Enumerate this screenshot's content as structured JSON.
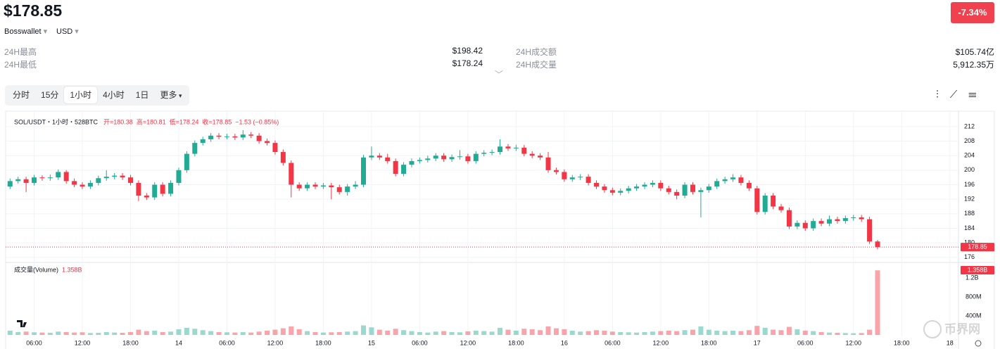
{
  "header": {
    "price": "$178.85",
    "source": "Bosswallet",
    "currency": "USD",
    "change": "-7.34%"
  },
  "stats": [
    {
      "label": "24H最高",
      "value": "$198.42"
    },
    {
      "label": "24H最低",
      "value": "$178.24"
    },
    {
      "label": "24H成交额",
      "value": "$105.74亿"
    },
    {
      "label": "24H成交量",
      "value": "5,912.35万"
    }
  ],
  "tabs": [
    "分时",
    "15分",
    "1小时",
    "4小时",
    "1日",
    "更多"
  ],
  "selected_tab": 2,
  "watermark": "币界网",
  "chart_data": {
    "type": "candlestick",
    "title": "SOL/USDT・1小时・528BTC",
    "legend": [
      "开=180.38",
      "高=180.81",
      "低=178.24",
      "收=178.85",
      "−1.53 (−0.85%)"
    ],
    "up_color": "#22ab94",
    "down_color": "#f23645",
    "grid": true,
    "open": [
      195.5,
      197,
      197.5,
      196.5,
      198,
      197.8,
      198,
      199.5,
      197,
      196,
      195.5,
      196.5,
      197.8,
      198.2,
      198.5,
      198,
      196.5,
      193,
      192.5,
      196,
      193.5,
      196.5,
      200,
      204.5,
      207.5,
      208.5,
      209.5,
      209.2,
      209.3,
      209,
      209.8,
      209.5,
      208,
      207.5,
      205,
      202,
      196,
      195,
      196,
      195.5,
      195.8,
      195.3,
      194,
      195.5,
      196,
      203.5,
      204,
      203.5,
      202.5,
      199,
      201.5,
      202.5,
      202.8,
      203.2,
      204,
      203,
      203.6,
      203.8,
      202.5,
      204.5,
      204.8,
      205,
      206.5,
      206,
      206.2,
      204.5,
      204,
      203.5,
      200,
      199.5,
      197.5,
      198,
      198.2,
      196.5,
      195.5,
      194.5,
      193.8,
      194.3,
      195,
      195.5,
      196,
      196.5,
      195,
      194,
      193,
      196,
      194,
      194.5,
      195.5,
      197,
      197.5,
      198,
      196.5,
      195,
      188.5,
      193,
      190,
      189,
      184.5,
      185.5,
      184,
      186,
      185.3,
      186.5,
      186,
      186.8,
      187,
      186.5,
      180.38
    ],
    "high": [
      197.7,
      198.2,
      198.2,
      198.7,
      198.6,
      198.8,
      200.2,
      200,
      197.7,
      196.7,
      197.2,
      198.5,
      200,
      199.2,
      199.2,
      198.7,
      197.2,
      193.7,
      196.7,
      196.7,
      197.2,
      200.7,
      205.2,
      208.2,
      209.2,
      210.2,
      210.2,
      210,
      210,
      211,
      210.5,
      210.2,
      208.7,
      208.2,
      205.7,
      202.7,
      196.7,
      196.7,
      196.7,
      196.5,
      196.5,
      196,
      196.2,
      197,
      204.2,
      206.5,
      204.7,
      204.5,
      203.2,
      202.2,
      203.2,
      203.5,
      204,
      204.7,
      204.7,
      204.3,
      205.5,
      204.5,
      205.2,
      205.5,
      205.7,
      208.5,
      207.2,
      207,
      206.9,
      205.2,
      204.7,
      205,
      200.7,
      200.2,
      198.7,
      198.9,
      198.9,
      197.2,
      196.2,
      195.2,
      195,
      195.7,
      196.2,
      196.7,
      197.2,
      197.2,
      195.7,
      194.7,
      196.7,
      196.7,
      195.2,
      196.2,
      197.7,
      198.2,
      198.9,
      198.7,
      197.2,
      195.7,
      193.7,
      193.7,
      190.7,
      189.7,
      186.2,
      186.2,
      186.7,
      186.7,
      187.5,
      187.2,
      187.5,
      187.7,
      187.7,
      187.2,
      180.81
    ],
    "low": [
      194.8,
      196.3,
      194,
      195.8,
      197.1,
      197.1,
      197.3,
      196.3,
      195.3,
      194.8,
      194.8,
      195.8,
      197.1,
      197.5,
      197.3,
      195.8,
      191.5,
      191.8,
      191.8,
      192.8,
      192.8,
      195.8,
      199.3,
      203.8,
      206.8,
      207.8,
      208.5,
      208.5,
      208.3,
      208.3,
      208.8,
      207.3,
      206.8,
      204.3,
      201.3,
      192.5,
      194.3,
      194.3,
      194.8,
      194.8,
      192,
      193.3,
      193,
      194.8,
      195.3,
      202.8,
      202.8,
      201.8,
      198.3,
      198.3,
      200.8,
      201.8,
      202.1,
      202.5,
      202.3,
      202.3,
      202.9,
      201.8,
      201.8,
      203.8,
      204.1,
      204.3,
      205.3,
      205.3,
      203.8,
      203.3,
      202.8,
      199.3,
      198.8,
      196.8,
      196.8,
      197.3,
      195.8,
      194.8,
      193.8,
      193.1,
      193.1,
      193.6,
      194.3,
      194.8,
      195.3,
      194.3,
      193.3,
      192,
      192.3,
      193.3,
      187,
      193.8,
      194.8,
      196.3,
      196.8,
      195.8,
      194.3,
      187.8,
      187.8,
      189.3,
      188.3,
      183.8,
      183.8,
      183.3,
      183.3,
      184.6,
      184.6,
      185.3,
      185.3,
      186.1,
      185.8,
      179.7,
      178.24
    ],
    "close": [
      197,
      197.5,
      196.5,
      198,
      197.8,
      198,
      199.5,
      197,
      196,
      195.5,
      196.5,
      197.8,
      198.2,
      198.5,
      198,
      196.5,
      193,
      192.5,
      196,
      193.5,
      196.5,
      200,
      204.5,
      207.5,
      208.5,
      209.5,
      209.2,
      209.3,
      209,
      209.8,
      209.5,
      208,
      207.5,
      205,
      202,
      196,
      195,
      196,
      195.5,
      195.8,
      195.3,
      194,
      195.5,
      196,
      203.5,
      204,
      203.5,
      202.5,
      199,
      201.5,
      202.5,
      202.8,
      203.2,
      204,
      203,
      203.6,
      203.8,
      202.5,
      204.5,
      204.8,
      205,
      206.5,
      206,
      206.2,
      204.5,
      204,
      203.5,
      200,
      199.5,
      197.5,
      198,
      198.2,
      196.5,
      195.5,
      194.5,
      193.8,
      194.3,
      195,
      195.5,
      196,
      196.5,
      195,
      194,
      193,
      196,
      194,
      194.5,
      195.5,
      197,
      197.5,
      198,
      196.5,
      195,
      188.5,
      193,
      190,
      189,
      184.5,
      185.5,
      184,
      186,
      185.3,
      186.5,
      186,
      186.8,
      187,
      186.5,
      180.38,
      178.85
    ],
    "ylim": [
      174.8,
      214.3
    ],
    "yticks": [
      176,
      180,
      184,
      188,
      192,
      196,
      200,
      204,
      208,
      212
    ],
    "xlim": [
      -0.2,
      117.9
    ],
    "xticks": [
      {
        "value": 3,
        "label": "06:00"
      },
      {
        "value": 9,
        "label": "12:00"
      },
      {
        "value": 15,
        "label": "18:00"
      },
      {
        "value": 21,
        "label": "14"
      },
      {
        "value": 27,
        "label": "06:00"
      },
      {
        "value": 33,
        "label": "12:00"
      },
      {
        "value": 39,
        "label": "18:00"
      },
      {
        "value": 45,
        "label": "15"
      },
      {
        "value": 51,
        "label": "06:00"
      },
      {
        "value": 57,
        "label": "12:00"
      },
      {
        "value": 63,
        "label": "18:00"
      },
      {
        "value": 69,
        "label": "16"
      },
      {
        "value": 75,
        "label": "06:00"
      },
      {
        "value": 81,
        "label": "12:00"
      },
      {
        "value": 87,
        "label": "18:00"
      },
      {
        "value": 93,
        "label": "17"
      },
      {
        "value": 99,
        "label": "06:00"
      },
      {
        "value": 105,
        "label": "12:00"
      },
      {
        "value": 111,
        "label": "18:00"
      },
      {
        "value": 117,
        "label": "18"
      }
    ],
    "volume": {
      "name": "成交量(Volume)",
      "last_value_label": "1.358B",
      "values": [
        90,
        60,
        70,
        55,
        50,
        45,
        70,
        60,
        50,
        55,
        40,
        45,
        60,
        50,
        45,
        60,
        110,
        80,
        90,
        60,
        70,
        120,
        150,
        130,
        100,
        80,
        60,
        55,
        50,
        60,
        50,
        70,
        90,
        110,
        140,
        180,
        120,
        80,
        60,
        50,
        55,
        60,
        70,
        80,
        200,
        160,
        110,
        90,
        130,
        100,
        80,
        60,
        50,
        70,
        80,
        60,
        55,
        75,
        90,
        80,
        70,
        150,
        110,
        90,
        130,
        120,
        100,
        180,
        140,
        120,
        90,
        70,
        80,
        100,
        90,
        70,
        60,
        55,
        50,
        60,
        70,
        80,
        90,
        80,
        100,
        110,
        180,
        110,
        90,
        80,
        90,
        80,
        100,
        190,
        150,
        110,
        100,
        170,
        120,
        90,
        80,
        60,
        50,
        45,
        40,
        35,
        40,
        110,
        1358
      ],
      "ylim": [
        0,
        1450
      ],
      "yticks": [
        {
          "value": 400,
          "label": "400M"
        },
        {
          "value": 800,
          "label": "800M"
        },
        {
          "value": 1200,
          "label": "1.2B"
        }
      ]
    }
  }
}
